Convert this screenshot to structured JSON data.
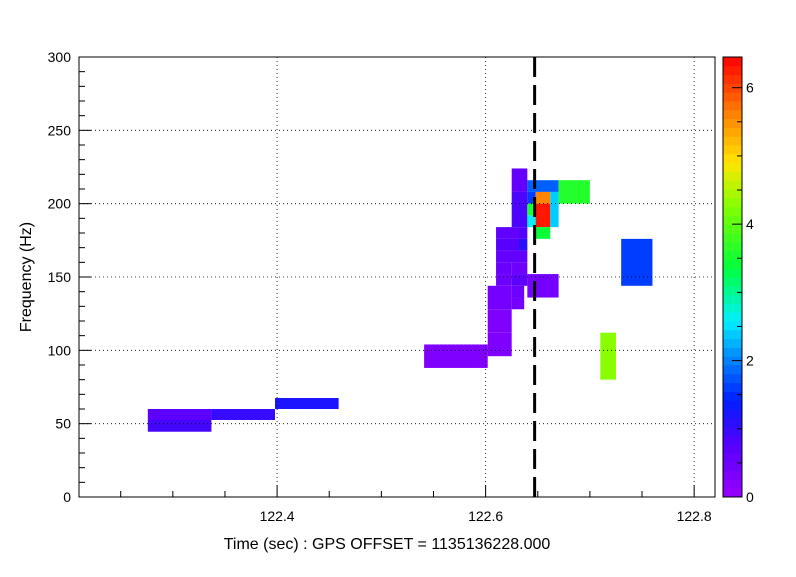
{
  "chart_data": {
    "type": "heatmap",
    "title": "",
    "xlabel": "Time (sec) : GPS OFFSET = 1135136228.000",
    "ylabel": "Frequency (Hz)",
    "xlim": [
      122.21,
      122.82
    ],
    "ylim": [
      0,
      300
    ],
    "x_ticks": [
      122.4,
      122.6,
      122.8
    ],
    "x_tick_labels": [
      "122.4",
      "122.6",
      "122.8"
    ],
    "y_ticks": [
      0,
      50,
      100,
      150,
      200,
      250,
      300
    ],
    "y_tick_labels": [
      "0",
      "50",
      "100",
      "150",
      "200",
      "250",
      "300"
    ],
    "grid": true,
    "colorbar": {
      "min": 0,
      "max": 6.45,
      "ticks": [
        0,
        2,
        4,
        6
      ],
      "tick_labels": [
        "0",
        "2",
        "4",
        "6"
      ],
      "palette": "rainbow (violet → blue → cyan → green → yellow → red)"
    },
    "marker_line": {
      "x": 122.647,
      "style": "dashed",
      "color": "#000000"
    },
    "tiles": [
      {
        "t0": 122.276,
        "t1": 122.337,
        "f0": 44.5,
        "f1": 52.5,
        "v": 0.9
      },
      {
        "t0": 122.276,
        "t1": 122.337,
        "f0": 52.5,
        "f1": 60.0,
        "v": 0.7
      },
      {
        "t0": 122.337,
        "t1": 122.398,
        "f0": 52.5,
        "f1": 60.0,
        "v": 1.0
      },
      {
        "t0": 122.398,
        "t1": 122.459,
        "f0": 60.0,
        "f1": 67.5,
        "v": 1.2
      },
      {
        "t0": 122.541,
        "t1": 122.602,
        "f0": 88.0,
        "f1": 104.0,
        "v": 0.3
      },
      {
        "t0": 122.602,
        "t1": 122.625,
        "f0": 96.0,
        "f1": 112.0,
        "v": 0.3
      },
      {
        "t0": 122.602,
        "t1": 122.625,
        "f0": 112.0,
        "f1": 128.0,
        "v": 0.3
      },
      {
        "t0": 122.602,
        "t1": 122.625,
        "f0": 128.0,
        "f1": 144.0,
        "v": 0.4
      },
      {
        "t0": 122.625,
        "t1": 122.637,
        "f0": 128.0,
        "f1": 136.0,
        "v": 0.4
      },
      {
        "t0": 122.625,
        "t1": 122.637,
        "f0": 136.0,
        "f1": 144.0,
        "v": 0.5
      },
      {
        "t0": 122.61,
        "t1": 122.625,
        "f0": 144.0,
        "f1": 152.0,
        "v": 0.5
      },
      {
        "t0": 122.61,
        "t1": 122.625,
        "f0": 152.0,
        "f1": 160.0,
        "v": 0.55
      },
      {
        "t0": 122.625,
        "t1": 122.64,
        "f0": 144.0,
        "f1": 152.0,
        "v": 0.7
      },
      {
        "t0": 122.625,
        "t1": 122.64,
        "f0": 152.0,
        "f1": 160.0,
        "v": 0.5
      },
      {
        "t0": 122.64,
        "t1": 122.67,
        "f0": 136.0,
        "f1": 152.0,
        "v": 0.4
      },
      {
        "t0": 122.61,
        "t1": 122.64,
        "f0": 160.0,
        "f1": 168.0,
        "v": 0.6
      },
      {
        "t0": 122.61,
        "t1": 122.632,
        "f0": 168.0,
        "f1": 176.0,
        "v": 0.75
      },
      {
        "t0": 122.632,
        "t1": 122.64,
        "f0": 168.0,
        "f1": 176.0,
        "v": 1.1
      },
      {
        "t0": 122.61,
        "t1": 122.632,
        "f0": 176.0,
        "f1": 184.0,
        "v": 0.65
      },
      {
        "t0": 122.632,
        "t1": 122.64,
        "f0": 176.0,
        "f1": 184.0,
        "v": 0.8
      },
      {
        "t0": 122.625,
        "t1": 122.64,
        "f0": 184.0,
        "f1": 208.0,
        "v": 0.85
      },
      {
        "t0": 122.625,
        "t1": 122.64,
        "f0": 208.0,
        "f1": 224.0,
        "v": 0.6
      },
      {
        "t0": 122.64,
        "t1": 122.67,
        "f0": 208.0,
        "f1": 216.0,
        "v": 1.8
      },
      {
        "t0": 122.64,
        "t1": 122.648,
        "f0": 200.0,
        "f1": 208.0,
        "v": 1.6
      },
      {
        "t0": 122.64,
        "t1": 122.648,
        "f0": 192.0,
        "f1": 200.0,
        "v": 3.5
      },
      {
        "t0": 122.64,
        "t1": 122.648,
        "f0": 184.0,
        "f1": 192.0,
        "v": 2.6
      },
      {
        "t0": 122.648,
        "t1": 122.662,
        "f0": 200.0,
        "f1": 208.0,
        "v": 5.6
      },
      {
        "t0": 122.648,
        "t1": 122.662,
        "f0": 184.0,
        "f1": 200.0,
        "v": 6.3
      },
      {
        "t0": 122.662,
        "t1": 122.67,
        "f0": 184.0,
        "f1": 208.0,
        "v": 2.4
      },
      {
        "t0": 122.648,
        "t1": 122.662,
        "f0": 176.0,
        "f1": 184.0,
        "v": 3.4
      },
      {
        "t0": 122.67,
        "t1": 122.7,
        "f0": 200.0,
        "f1": 216.0,
        "v": 3.6
      },
      {
        "t0": 122.71,
        "t1": 122.725,
        "f0": 80.0,
        "f1": 112.0,
        "v": 4.3
      },
      {
        "t0": 122.73,
        "t1": 122.76,
        "f0": 144.0,
        "f1": 176.0,
        "v": 1.6
      }
    ]
  }
}
